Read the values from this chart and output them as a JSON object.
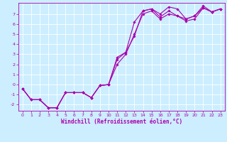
{
  "xlabel": "Windchill (Refroidissement éolien,°C)",
  "background_color": "#cceeff",
  "grid_color": "#ffffff",
  "line_color": "#aa00aa",
  "spine_color": "#aa00aa",
  "xlim": [
    -0.5,
    23.5
  ],
  "ylim": [
    -2.6,
    8.1
  ],
  "xticks": [
    0,
    1,
    2,
    3,
    4,
    5,
    6,
    7,
    8,
    9,
    10,
    11,
    12,
    13,
    14,
    15,
    16,
    17,
    18,
    19,
    20,
    21,
    22,
    23
  ],
  "yticks": [
    -2,
    -1,
    0,
    1,
    2,
    3,
    4,
    5,
    6,
    7
  ],
  "tick_fontsize": 4.5,
  "xlabel_fontsize": 5.5,
  "line1_x": [
    0,
    1,
    2,
    3,
    4,
    5,
    6,
    7,
    8,
    9,
    10,
    11,
    12,
    13,
    14,
    15,
    16,
    17,
    18,
    19,
    20,
    21,
    22,
    23
  ],
  "line1_y": [
    -0.4,
    -1.5,
    -1.5,
    -2.3,
    -2.3,
    -0.8,
    -0.8,
    -0.8,
    -1.3,
    -0.1,
    0.0,
    2.5,
    3.2,
    6.2,
    7.3,
    7.5,
    7.0,
    7.7,
    7.5,
    6.5,
    6.8,
    7.8,
    7.2,
    7.5
  ],
  "line2_x": [
    0,
    1,
    2,
    3,
    4,
    5,
    6,
    7,
    8,
    9,
    10,
    11,
    12,
    13,
    14,
    15,
    16,
    17,
    18,
    19,
    20,
    21,
    22,
    23
  ],
  "line2_y": [
    -0.4,
    -1.5,
    -1.5,
    -2.3,
    -2.3,
    -0.8,
    -0.8,
    -0.8,
    -1.3,
    -0.1,
    0.0,
    2.7,
    3.2,
    4.8,
    7.3,
    7.5,
    6.7,
    7.3,
    6.8,
    6.3,
    6.5,
    7.6,
    7.2,
    7.5
  ],
  "line3_x": [
    0,
    1,
    2,
    3,
    4,
    5,
    6,
    7,
    8,
    9,
    10,
    11,
    12,
    13,
    14,
    15,
    16,
    17,
    18,
    19,
    20,
    21,
    22,
    23
  ],
  "line3_y": [
    -0.4,
    -1.5,
    -1.5,
    -2.3,
    -2.3,
    -0.8,
    -0.8,
    -0.8,
    -1.3,
    -0.1,
    0.0,
    2.0,
    3.0,
    5.0,
    7.0,
    7.3,
    6.5,
    7.0,
    6.8,
    6.5,
    6.8,
    7.6,
    7.2,
    7.5
  ],
  "linewidth": 0.8,
  "markersize": 1.8
}
